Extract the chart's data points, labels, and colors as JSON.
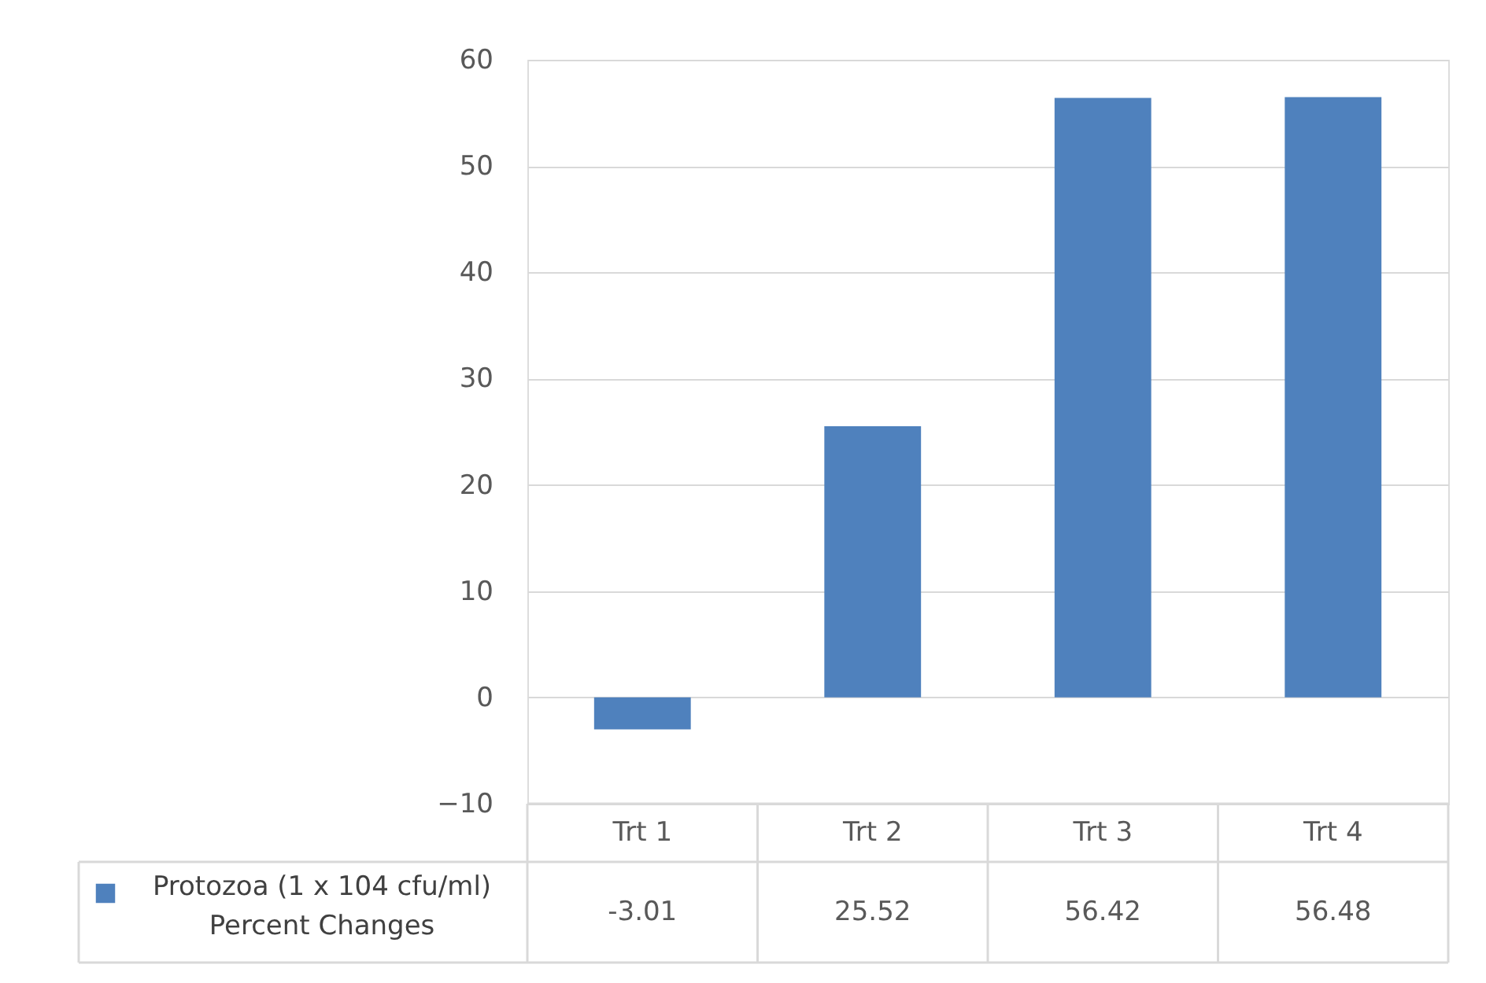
{
  "chart_data": {
    "type": "bar",
    "categories": [
      "Trt 1",
      "Trt 2",
      "Trt 3",
      "Trt 4"
    ],
    "series": [
      {
        "name": "Protozoa (1 x 104 cfu/ml) Percent Changes",
        "color": "#4f81bd",
        "values": [
          -3.01,
          25.52,
          56.42,
          56.48
        ]
      }
    ],
    "ylim": [
      -10,
      60
    ],
    "yticks": [
      -10,
      0,
      10,
      20,
      30,
      40,
      50,
      60
    ],
    "grid": "y",
    "legend": "bottom left",
    "data_labels": true
  }
}
